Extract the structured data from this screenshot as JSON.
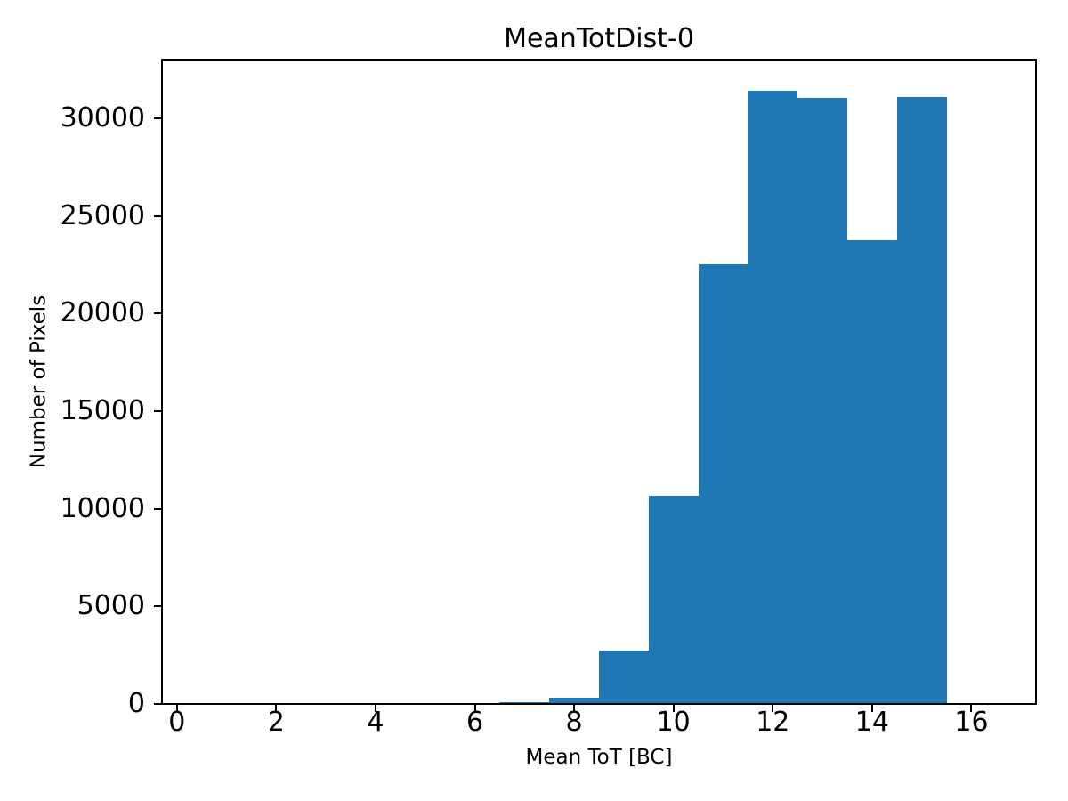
{
  "chart_data": {
    "type": "bar",
    "subtype": "histogram",
    "title": "MeanTotDist-0",
    "xlabel": "Mean ToT [BC]",
    "ylabel": "Number of Pixels",
    "bar_color": "#1f77b4",
    "background_color": "#ffffff",
    "text_color": "#000000",
    "grid": false,
    "legend": false,
    "bin_edges": [
      0.5,
      1.5,
      2.5,
      3.5,
      4.5,
      5.5,
      6.5,
      7.5,
      8.5,
      9.5,
      10.5,
      11.5,
      12.5,
      13.5,
      14.5,
      15.5,
      16.5
    ],
    "counts": [
      0,
      0,
      0,
      0,
      0,
      0,
      100,
      330,
      2750,
      10650,
      22500,
      31400,
      31050,
      23750,
      31100,
      0
    ],
    "xlim": [
      -0.3,
      17.3
    ],
    "ylim": [
      0,
      33000
    ],
    "xticks": [
      0,
      2,
      4,
      6,
      8,
      10,
      12,
      14,
      16
    ],
    "yticks": [
      0,
      5000,
      10000,
      15000,
      20000,
      25000,
      30000
    ],
    "xtick_labels": [
      "0",
      "2",
      "4",
      "6",
      "8",
      "10",
      "12",
      "14",
      "16"
    ],
    "ytick_labels": [
      "0",
      "5000",
      "10000",
      "15000",
      "20000",
      "25000",
      "30000"
    ]
  }
}
